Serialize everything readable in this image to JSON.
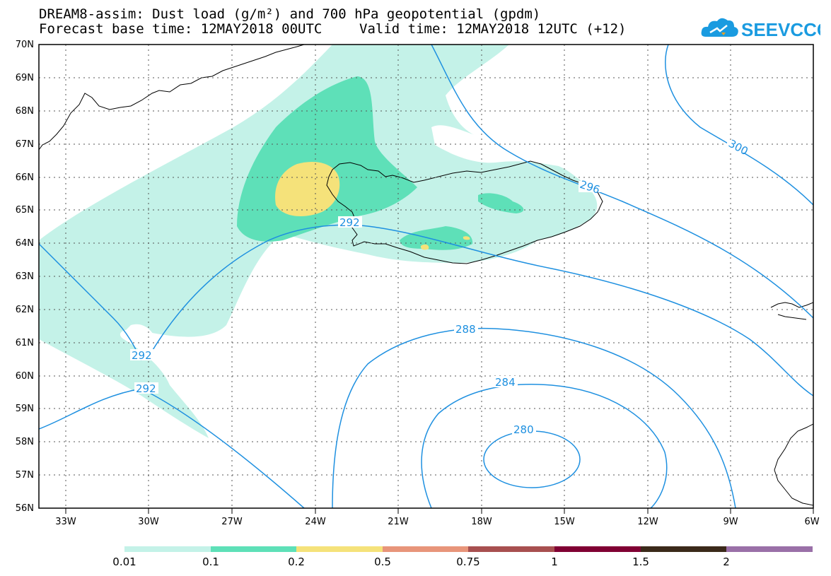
{
  "title": {
    "line1": "DREAM8-assim: Dust load (g/m²) and 700 hPa geopotential (gpdm)",
    "base_time": "Forecast base time: 12MAY2018 00UTC",
    "valid_time": "Valid time: 12MAY2018 12UTC (+12)"
  },
  "logo": {
    "text": "SEEVCCC",
    "icon": "cloud-icon",
    "color": "#1a9be0"
  },
  "lat_labels": [
    "70N",
    "69N",
    "68N",
    "67N",
    "66N",
    "65N",
    "64N",
    "63N",
    "62N",
    "61N",
    "60N",
    "59N",
    "58N",
    "57N",
    "56N"
  ],
  "lon_labels": [
    "33W",
    "30W",
    "27W",
    "24W",
    "21W",
    "18W",
    "15W",
    "12W",
    "9W",
    "6W"
  ],
  "contour_labels": [
    "300",
    "296",
    "292",
    "292",
    "292",
    "288",
    "284",
    "280"
  ],
  "contour_color": "#1e90e0",
  "colorbar": {
    "colors": [
      "#c4f2e8",
      "#5ee0b8",
      "#f5e27a",
      "#e8957a",
      "#a85050",
      "#800033",
      "#3b2a1a",
      "#9a70a8"
    ],
    "labels": [
      "0.01",
      "0.1",
      "0.2",
      "0.5",
      "0.75",
      "1",
      "1.5",
      "2"
    ]
  }
}
